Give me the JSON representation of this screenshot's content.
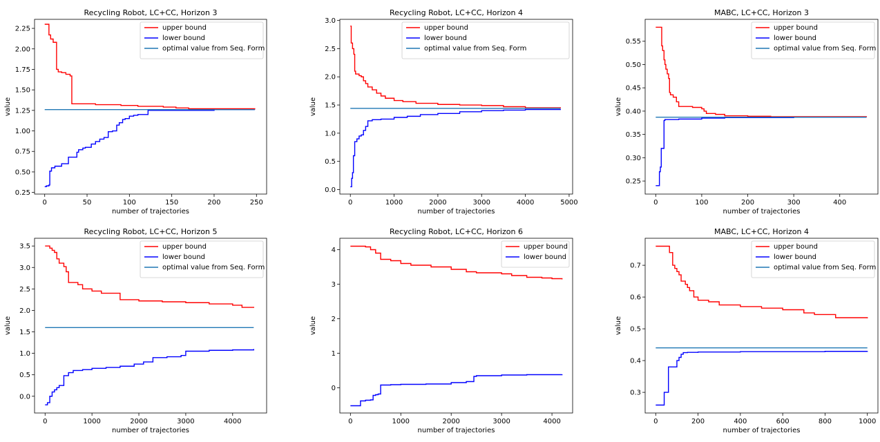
{
  "figure": {
    "colors": {
      "upper": "#ff0000",
      "lower": "#0000ff",
      "optimal": "#1f77b4"
    }
  },
  "chart_data": [
    {
      "type": "line",
      "title": "Recycling Robot, LC+CC, Horizon 3",
      "xlabel": "number of trajectories",
      "ylabel": "value",
      "xlim": [
        -12,
        262
      ],
      "ylim": [
        0.23,
        2.36
      ],
      "xticks": [
        0,
        50,
        100,
        150,
        200,
        250
      ],
      "xtick_labels": [
        "0",
        "50",
        "100",
        "150",
        "200",
        "250"
      ],
      "yticks": [
        0.25,
        0.5,
        0.75,
        1.0,
        1.25,
        1.5,
        1.75,
        2.0,
        2.25
      ],
      "ytick_labels": [
        "0.25",
        "0.50",
        "0.75",
        "1.00",
        "1.25",
        "1.50",
        "1.75",
        "2.00",
        "2.25"
      ],
      "legend_position": "top-right",
      "series": [
        {
          "name": "upper bound",
          "color": "#ff0000",
          "x": [
            0,
            3,
            5,
            7,
            10,
            12,
            14,
            16,
            20,
            25,
            30,
            32,
            60,
            90,
            110,
            140,
            155,
            170,
            200,
            248
          ],
          "y": [
            2.3,
            2.3,
            2.17,
            2.12,
            2.08,
            2.08,
            1.75,
            1.72,
            1.71,
            1.69,
            1.67,
            1.33,
            1.32,
            1.31,
            1.3,
            1.29,
            1.28,
            1.27,
            1.27,
            1.26
          ]
        },
        {
          "name": "lower bound",
          "color": "#0000ff",
          "x": [
            0,
            2,
            5,
            6,
            8,
            12,
            15,
            20,
            28,
            30,
            38,
            40,
            45,
            48,
            55,
            60,
            65,
            70,
            75,
            80,
            85,
            88,
            92,
            95,
            100,
            105,
            110,
            118,
            122,
            130,
            160,
            200,
            248
          ],
          "y": [
            0.32,
            0.33,
            0.34,
            0.51,
            0.55,
            0.57,
            0.57,
            0.6,
            0.68,
            0.68,
            0.74,
            0.77,
            0.79,
            0.8,
            0.84,
            0.87,
            0.9,
            0.92,
            0.99,
            1.0,
            1.07,
            1.1,
            1.14,
            1.15,
            1.18,
            1.19,
            1.2,
            1.2,
            1.25,
            1.25,
            1.25,
            1.26,
            1.26
          ]
        },
        {
          "name": "optimal value from Seq. Form",
          "color": "#1f77b4",
          "x": [
            0,
            248
          ],
          "y": [
            1.26,
            1.26
          ]
        }
      ]
    },
    {
      "type": "line",
      "title": "Recycling Robot, LC+CC, Horizon 4",
      "xlabel": "number of trajectories",
      "ylabel": "value",
      "xlim": [
        -240,
        5080
      ],
      "ylim": [
        -0.08,
        3.02
      ],
      "xticks": [
        0,
        1000,
        2000,
        3000,
        4000,
        5000
      ],
      "xtick_labels": [
        "0",
        "1000",
        "2000",
        "3000",
        "4000",
        "5000"
      ],
      "yticks": [
        0.0,
        0.5,
        1.0,
        1.5,
        2.0,
        2.5,
        3.0
      ],
      "ytick_labels": [
        "0.0",
        "0.5",
        "1.0",
        "1.5",
        "2.0",
        "2.5",
        "3.0"
      ],
      "legend_position": "top-right",
      "series": [
        {
          "name": "upper bound",
          "color": "#ff0000",
          "x": [
            0,
            20,
            50,
            80,
            100,
            120,
            200,
            250,
            300,
            350,
            400,
            500,
            600,
            700,
            800,
            1000,
            1200,
            1500,
            2000,
            2500,
            3000,
            3500,
            4000,
            4800
          ],
          "y": [
            2.9,
            2.6,
            2.5,
            2.4,
            2.1,
            2.05,
            2.02,
            2.0,
            1.93,
            1.88,
            1.82,
            1.77,
            1.71,
            1.66,
            1.62,
            1.58,
            1.56,
            1.53,
            1.51,
            1.5,
            1.49,
            1.47,
            1.45,
            1.44
          ]
        },
        {
          "name": "lower bound",
          "color": "#0000ff",
          "x": [
            0,
            30,
            50,
            70,
            100,
            150,
            200,
            250,
            300,
            350,
            400,
            500,
            700,
            1000,
            1300,
            1600,
            2000,
            2500,
            3000,
            3500,
            4000,
            4800
          ],
          "y": [
            0.05,
            0.2,
            0.3,
            0.6,
            0.85,
            0.9,
            0.95,
            0.97,
            1.05,
            1.12,
            1.22,
            1.24,
            1.25,
            1.28,
            1.3,
            1.33,
            1.35,
            1.38,
            1.4,
            1.41,
            1.42,
            1.43
          ]
        },
        {
          "name": "optimal value from Seq. Form",
          "color": "#1f77b4",
          "x": [
            0,
            4800
          ],
          "y": [
            1.44,
            1.44
          ]
        }
      ]
    },
    {
      "type": "line",
      "title": "MABC, LC+CC, Horizon 3",
      "xlabel": "number of trajectories",
      "ylabel": "value",
      "xlim": [
        -23,
        483
      ],
      "ylim": [
        0.222,
        0.597
      ],
      "xticks": [
        0,
        100,
        200,
        300,
        400
      ],
      "xtick_labels": [
        "0",
        "100",
        "200",
        "300",
        "400"
      ],
      "yticks": [
        0.25,
        0.3,
        0.35,
        0.4,
        0.45,
        0.5,
        0.55
      ],
      "ytick_labels": [
        "0.25",
        "0.30",
        "0.35",
        "0.40",
        "0.45",
        "0.50",
        "0.55"
      ],
      "legend_position": "top-right",
      "series": [
        {
          "name": "upper bound",
          "color": "#ff0000",
          "x": [
            0,
            5,
            10,
            13,
            15,
            18,
            20,
            22,
            25,
            28,
            30,
            32,
            35,
            38,
            40,
            45,
            50,
            60,
            80,
            100,
            105,
            110,
            130,
            150,
            200,
            250,
            300,
            458
          ],
          "y": [
            0.58,
            0.58,
            0.58,
            0.54,
            0.53,
            0.51,
            0.5,
            0.49,
            0.48,
            0.47,
            0.44,
            0.435,
            0.435,
            0.43,
            0.43,
            0.42,
            0.41,
            0.41,
            0.408,
            0.405,
            0.4,
            0.395,
            0.393,
            0.39,
            0.389,
            0.388,
            0.388,
            0.387
          ]
        },
        {
          "name": "lower bound",
          "color": "#0000ff",
          "x": [
            0,
            3,
            8,
            10,
            12,
            15,
            18,
            20,
            25,
            30,
            50,
            100,
            150,
            200,
            250,
            300,
            458
          ],
          "y": [
            0.24,
            0.24,
            0.27,
            0.28,
            0.32,
            0.32,
            0.38,
            0.382,
            0.382,
            0.382,
            0.383,
            0.385,
            0.386,
            0.386,
            0.386,
            0.387,
            0.387
          ]
        },
        {
          "name": "optimal value from Seq. Form",
          "color": "#1f77b4",
          "x": [
            0,
            458
          ],
          "y": [
            0.387,
            0.387
          ]
        }
      ]
    },
    {
      "type": "line",
      "title": "Recycling Robot, LC+CC, Horizon 5",
      "xlabel": "number of trajectories",
      "ylabel": "value",
      "xlim": [
        -225,
        4725
      ],
      "ylim": [
        -0.39,
        3.68
      ],
      "xticks": [
        0,
        1000,
        2000,
        3000,
        4000
      ],
      "xtick_labels": [
        "0",
        "1000",
        "2000",
        "3000",
        "4000"
      ],
      "yticks": [
        0.0,
        0.5,
        1.0,
        1.5,
        2.0,
        2.5,
        3.0,
        3.5
      ],
      "ytick_labels": [
        "0.0",
        "0.5",
        "1.0",
        "1.5",
        "2.0",
        "2.5",
        "3.0",
        "3.5"
      ],
      "legend_position": "top-right",
      "series": [
        {
          "name": "upper bound",
          "color": "#ff0000",
          "x": [
            0,
            100,
            150,
            200,
            250,
            300,
            400,
            450,
            500,
            700,
            800,
            1000,
            1200,
            1600,
            2000,
            2500,
            3000,
            3500,
            4000,
            4200,
            4450
          ],
          "y": [
            3.5,
            3.45,
            3.4,
            3.35,
            3.2,
            3.1,
            3.02,
            2.9,
            2.65,
            2.6,
            2.5,
            2.45,
            2.4,
            2.25,
            2.22,
            2.2,
            2.18,
            2.15,
            2.12,
            2.07,
            2.06
          ]
        },
        {
          "name": "lower bound",
          "color": "#0000ff",
          "x": [
            0,
            50,
            100,
            150,
            200,
            250,
            300,
            400,
            500,
            600,
            800,
            1000,
            1300,
            1600,
            1900,
            2100,
            2300,
            2600,
            2900,
            3000,
            3500,
            4000,
            4450
          ],
          "y": [
            -0.2,
            -0.15,
            0.0,
            0.1,
            0.15,
            0.2,
            0.25,
            0.48,
            0.55,
            0.6,
            0.62,
            0.65,
            0.67,
            0.7,
            0.75,
            0.8,
            0.9,
            0.92,
            0.95,
            1.05,
            1.07,
            1.08,
            1.1
          ]
        },
        {
          "name": "optimal value from Seq. Form",
          "color": "#1f77b4",
          "x": [
            0,
            4450
          ],
          "y": [
            1.6,
            1.6
          ]
        }
      ]
    },
    {
      "type": "line",
      "title": "Recycling Robot, LC+CC, Horizon 6",
      "xlabel": "number of trajectories",
      "ylabel": "value",
      "xlim": [
        -210,
        4410
      ],
      "ylim": [
        -0.73,
        4.33
      ],
      "xticks": [
        0,
        1000,
        2000,
        3000,
        4000
      ],
      "xtick_labels": [
        "0",
        "1000",
        "2000",
        "3000",
        "4000"
      ],
      "yticks": [
        0,
        1,
        2,
        3,
        4
      ],
      "ytick_labels": [
        "0",
        "1",
        "2",
        "3",
        "4"
      ],
      "legend_position": "top-right",
      "series": [
        {
          "name": "upper bound",
          "color": "#ff0000",
          "x": [
            0,
            300,
            400,
            500,
            600,
            800,
            1000,
            1200,
            1600,
            2000,
            2300,
            2500,
            3000,
            3200,
            3500,
            3800,
            4000,
            4200
          ],
          "y": [
            4.1,
            4.08,
            4.0,
            3.9,
            3.72,
            3.68,
            3.6,
            3.55,
            3.5,
            3.43,
            3.36,
            3.33,
            3.3,
            3.25,
            3.2,
            3.18,
            3.16,
            3.14
          ]
        },
        {
          "name": "lower bound",
          "color": "#0000ff",
          "x": [
            0,
            150,
            200,
            300,
            400,
            450,
            500,
            550,
            600,
            800,
            1000,
            1500,
            2000,
            2300,
            2450,
            2500,
            3000,
            3500,
            4200
          ],
          "y": [
            -0.52,
            -0.52,
            -0.38,
            -0.36,
            -0.35,
            -0.22,
            -0.2,
            -0.18,
            0.08,
            0.09,
            0.1,
            0.11,
            0.15,
            0.18,
            0.33,
            0.35,
            0.37,
            0.38,
            0.39
          ]
        }
      ]
    },
    {
      "type": "line",
      "title": "MABC, LC+CC, Horizon 4",
      "xlabel": "number of trajectories",
      "ylabel": "value",
      "xlim": [
        -50,
        1050
      ],
      "ylim": [
        0.235,
        0.785
      ],
      "xticks": [
        0,
        200,
        400,
        600,
        800,
        1000
      ],
      "xtick_labels": [
        "0",
        "200",
        "400",
        "600",
        "800",
        "1000"
      ],
      "yticks": [
        0.3,
        0.4,
        0.5,
        0.6,
        0.7
      ],
      "ytick_labels": [
        "0.3",
        "0.4",
        "0.5",
        "0.6",
        "0.7"
      ],
      "legend_position": "top-right",
      "series": [
        {
          "name": "upper bound",
          "color": "#ff0000",
          "x": [
            0,
            50,
            65,
            80,
            90,
            100,
            110,
            120,
            140,
            150,
            160,
            170,
            180,
            200,
            210,
            250,
            300,
            400,
            500,
            600,
            700,
            750,
            850,
            1000
          ],
          "y": [
            0.76,
            0.76,
            0.74,
            0.7,
            0.69,
            0.68,
            0.67,
            0.65,
            0.64,
            0.63,
            0.62,
            0.62,
            0.6,
            0.59,
            0.59,
            0.585,
            0.575,
            0.57,
            0.565,
            0.56,
            0.55,
            0.545,
            0.535,
            0.533
          ]
        },
        {
          "name": "lower bound",
          "color": "#0000ff",
          "x": [
            0,
            25,
            40,
            50,
            60,
            90,
            100,
            110,
            120,
            130,
            150,
            200,
            400,
            600,
            800,
            1000
          ],
          "y": [
            0.26,
            0.26,
            0.3,
            0.3,
            0.38,
            0.38,
            0.4,
            0.41,
            0.42,
            0.425,
            0.426,
            0.427,
            0.428,
            0.428,
            0.429,
            0.43
          ]
        },
        {
          "name": "optimal value from Seq. Form",
          "color": "#1f77b4",
          "x": [
            0,
            1000
          ],
          "y": [
            0.44,
            0.44
          ]
        }
      ]
    }
  ]
}
